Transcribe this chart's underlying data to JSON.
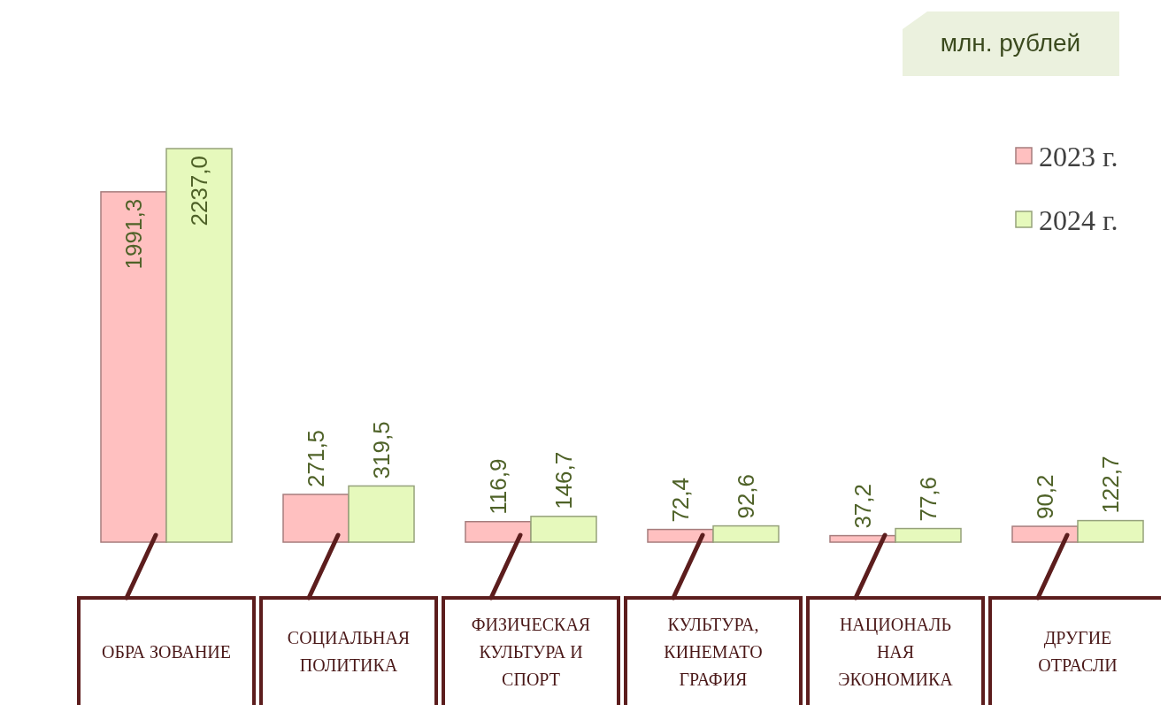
{
  "chart_data": {
    "type": "bar",
    "categories": [
      "ОБРА ЗОВАНИЕ",
      "СОЦИАЛЬНАЯ\nПОЛИТИКА",
      "ФИЗИЧЕСКАЯ\nКУЛЬТУРА И\nСПОРТ",
      "КУЛЬТУРА,\nКИНЕМАТО\nГРАФИЯ",
      "НАЦИОНАЛЬ\nНАЯ\nЭКОНОМИКА",
      "ДРУГИЕ\nОТРАСЛИ"
    ],
    "series": [
      {
        "name": "2023 г.",
        "color": "#ffc0c0",
        "values": [
          1991.3,
          271.5,
          116.9,
          72.4,
          37.2,
          90.2
        ],
        "value_labels": [
          "1991,3",
          "271,5",
          "116,9",
          "72,4",
          "37,2",
          "90,2"
        ]
      },
      {
        "name": "2024 г.",
        "color": "#e6f9bc",
        "values": [
          2237.0,
          319.5,
          146.7,
          92.6,
          77.6,
          122.7
        ],
        "value_labels": [
          "2237,0",
          "319,5",
          "146,7",
          "92,6",
          "77,6",
          "122,7"
        ]
      }
    ],
    "legend": "top right",
    "annotations": [
      "млн. рублей"
    ]
  }
}
